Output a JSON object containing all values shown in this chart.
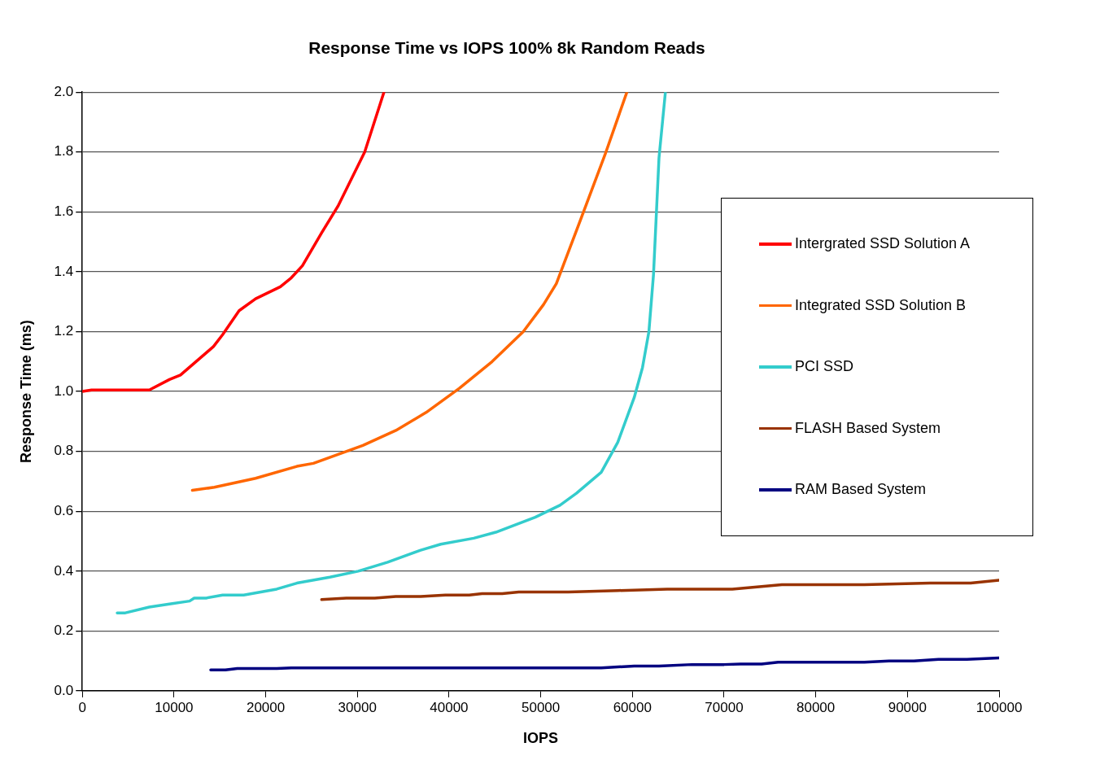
{
  "chart_data": {
    "type": "line",
    "title": "Response Time vs IOPS 100% 8k Random Reads",
    "xlabel": "IOPS",
    "ylabel": "Response Time (ms)",
    "xlim": [
      0,
      100000
    ],
    "xticks": [
      0,
      10000,
      20000,
      30000,
      40000,
      50000,
      60000,
      70000,
      80000,
      90000,
      100000
    ],
    "ylim": [
      0,
      2.0
    ],
    "yticks": [
      {
        "value": 0,
        "label": "0.0"
      },
      {
        "value": 0.2,
        "label": "0.2"
      },
      {
        "value": 0.4,
        "label": "0.4"
      },
      {
        "value": 0.6,
        "label": "0.6"
      },
      {
        "value": 0.8,
        "label": "0.8"
      },
      {
        "value": 1.0,
        "label": "1.0"
      },
      {
        "value": 1.2,
        "label": "1.2"
      },
      {
        "value": 1.4,
        "label": "1.4"
      },
      {
        "value": 1.6,
        "label": "1.6"
      },
      {
        "value": 1.8,
        "label": "1.8"
      },
      {
        "value": 2.0,
        "label": "2.0"
      }
    ],
    "grid": "y",
    "legend": "right",
    "marker": "none",
    "line_style": "solid",
    "series": [
      {
        "name": "Intergrated SSD Solution A",
        "color": "#ff0000",
        "x": [
          0,
          1000,
          7300,
          9500,
          10700,
          14300,
          15300,
          17100,
          18900,
          21600,
          22800,
          24000,
          26100,
          27900,
          30800,
          32900
        ],
        "values": [
          1.0,
          1.005,
          1.005,
          1.04,
          1.055,
          1.15,
          1.19,
          1.27,
          1.31,
          1.35,
          1.38,
          1.42,
          1.53,
          1.62,
          1.8,
          2.0
        ]
      },
      {
        "name": "Integrated SSD Solution B",
        "color": "#ff6600",
        "x": [
          12000,
          14400,
          18900,
          23400,
          25200,
          30600,
          34200,
          37500,
          41100,
          44700,
          48100,
          50300,
          51700,
          54300,
          57000,
          59400
        ],
        "values": [
          0.67,
          0.68,
          0.71,
          0.75,
          0.76,
          0.82,
          0.87,
          0.93,
          1.01,
          1.1,
          1.2,
          1.29,
          1.36,
          1.57,
          1.79,
          2.0
        ]
      },
      {
        "name": "PCI SSD",
        "color": "#33cccc",
        "x": [
          3800,
          4600,
          7300,
          9500,
          11700,
          12200,
          13500,
          15300,
          17600,
          21200,
          23400,
          27000,
          30100,
          33300,
          36900,
          39100,
          42700,
          45100,
          49400,
          52100,
          53900,
          56600,
          58400,
          60200,
          61100,
          61800,
          62300,
          62900,
          63600
        ],
        "values": [
          0.26,
          0.26,
          0.28,
          0.29,
          0.3,
          0.31,
          0.31,
          0.32,
          0.32,
          0.34,
          0.36,
          0.38,
          0.4,
          0.43,
          0.47,
          0.49,
          0.51,
          0.53,
          0.58,
          0.62,
          0.66,
          0.73,
          0.83,
          0.98,
          1.08,
          1.2,
          1.39,
          1.78,
          2.0
        ]
      },
      {
        "name": "FLASH Based System",
        "color": "#993300",
        "x": [
          26100,
          28800,
          31900,
          34200,
          36900,
          39600,
          42200,
          43600,
          45800,
          47600,
          53000,
          58400,
          63800,
          70900,
          76300,
          85300,
          92500,
          96900,
          100000
        ],
        "values": [
          0.305,
          0.31,
          0.31,
          0.315,
          0.315,
          0.32,
          0.32,
          0.325,
          0.325,
          0.33,
          0.33,
          0.335,
          0.34,
          0.34,
          0.355,
          0.355,
          0.36,
          0.36,
          0.37
        ]
      },
      {
        "name": "RAM Based System",
        "color": "#000080",
        "x": [
          14000,
          15600,
          16900,
          21200,
          22800,
          56600,
          60200,
          62900,
          66500,
          70000,
          71800,
          74100,
          75900,
          85300,
          88000,
          90700,
          93400,
          96500,
          100000
        ],
        "values": [
          0.07,
          0.07,
          0.075,
          0.075,
          0.077,
          0.077,
          0.083,
          0.083,
          0.088,
          0.088,
          0.09,
          0.09,
          0.096,
          0.096,
          0.1,
          0.1,
          0.105,
          0.105,
          0.11
        ]
      }
    ]
  }
}
